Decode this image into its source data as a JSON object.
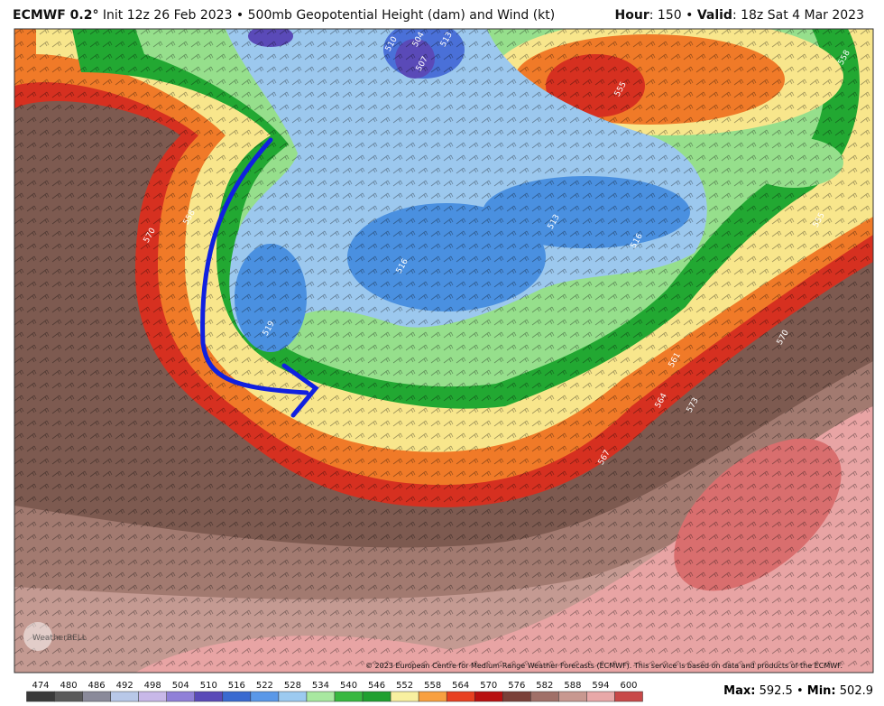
{
  "header": {
    "model": "ECMWF 0.2°",
    "description": "Init 12z 26 Feb 2023 • 500mb Geopotential Height (dam) and Wind (kt)",
    "hour_label": "Hour",
    "hour_value": ": 150 • ",
    "valid_label": "Valid",
    "valid_value": ": 18z Sat 4 Mar 2023"
  },
  "map": {
    "contour_labels": [
      570,
      558,
      510,
      504,
      507,
      513,
      516,
      513,
      516,
      519,
      555,
      558,
      555,
      561,
      564,
      573,
      567,
      570
    ],
    "copyright": "© 2023 European Centre for Medium-Range Weather Forecasts (ECMWF). This service is based on data and products of the ECMWF.",
    "logo": "WeatherBELL"
  },
  "legend": {
    "levels": [
      474,
      480,
      486,
      492,
      498,
      504,
      510,
      516,
      522,
      528,
      534,
      540,
      546,
      552,
      558,
      564,
      570,
      576,
      582,
      588,
      594,
      600
    ],
    "colors": [
      "#3a3a3a",
      "#5a5a5a",
      "#8a8a9a",
      "#b8c8e8",
      "#c8b8e8",
      "#9080d8",
      "#5a4ab8",
      "#3a6ad0",
      "#5a98e8",
      "#9ccaf0",
      "#a8e8a0",
      "#38b840",
      "#20a030",
      "#f8f0a0",
      "#f8a040",
      "#e84020",
      "#b81010",
      "#7a4038",
      "#a07068",
      "#c89890",
      "#e8a8a8",
      "#c84848"
    ]
  },
  "footer": {
    "max_label": "Max:",
    "max": 592.5,
    "separator": "•",
    "min_label": "Min:",
    "min": 502.9
  }
}
